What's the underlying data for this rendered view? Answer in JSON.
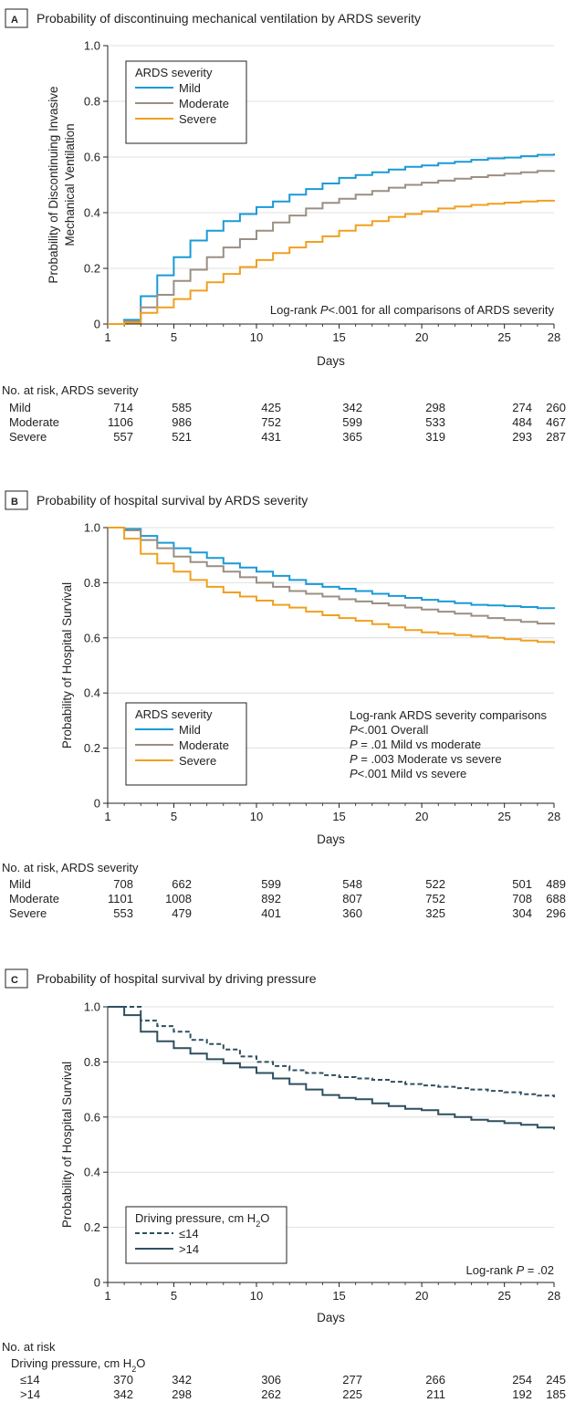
{
  "chart_data": [
    {
      "type": "line",
      "step": true,
      "panel_letter": "A",
      "title": "Probability of discontinuing mechanical ventilation by ARDS severity",
      "xlabel": "Days",
      "ylabel_lines": [
        "Probability of Discontinuing Invasive",
        "Mechanical Ventilation"
      ],
      "xlim": [
        1,
        28
      ],
      "ylim": [
        0,
        1
      ],
      "xticks": [
        1,
        5,
        10,
        15,
        20,
        25,
        28
      ],
      "yticks": [
        0,
        0.2,
        0.4,
        0.6,
        0.8,
        1.0
      ],
      "ytick_labels": [
        "0",
        "0.2",
        "0.4",
        "0.6",
        "0.8",
        "1.0"
      ],
      "grid": true,
      "legend": {
        "title": "ARDS severity",
        "position": "top-left"
      },
      "annotation": {
        "parts": [
          {
            "t": "Log-rank "
          },
          {
            "t": "P",
            "i": true
          },
          {
            "t": "<.001 for all comparisons of ARDS severity"
          }
        ]
      },
      "series": [
        {
          "name": "Mild",
          "color": "#1a9ad6",
          "dash": false,
          "x": [
            1,
            2,
            3,
            4,
            5,
            6,
            7,
            8,
            9,
            10,
            11,
            12,
            13,
            14,
            15,
            16,
            17,
            18,
            19,
            20,
            21,
            22,
            23,
            24,
            25,
            26,
            27,
            28
          ],
          "y": [
            0,
            0.015,
            0.1,
            0.175,
            0.24,
            0.3,
            0.335,
            0.37,
            0.395,
            0.42,
            0.44,
            0.465,
            0.485,
            0.505,
            0.525,
            0.535,
            0.545,
            0.555,
            0.565,
            0.57,
            0.578,
            0.583,
            0.59,
            0.595,
            0.598,
            0.603,
            0.608,
            0.612
          ]
        },
        {
          "name": "Moderate",
          "color": "#9a8f82",
          "dash": false,
          "x": [
            1,
            2,
            3,
            4,
            5,
            6,
            7,
            8,
            9,
            10,
            11,
            12,
            13,
            14,
            15,
            16,
            17,
            18,
            19,
            20,
            21,
            22,
            23,
            24,
            25,
            26,
            27,
            28
          ],
          "y": [
            0,
            0.01,
            0.06,
            0.105,
            0.155,
            0.195,
            0.24,
            0.275,
            0.305,
            0.335,
            0.365,
            0.39,
            0.415,
            0.435,
            0.45,
            0.465,
            0.478,
            0.49,
            0.5,
            0.508,
            0.515,
            0.522,
            0.528,
            0.534,
            0.54,
            0.545,
            0.55,
            0.552
          ]
        },
        {
          "name": "Severe",
          "color": "#f0a020",
          "dash": false,
          "x": [
            1,
            2,
            3,
            4,
            5,
            6,
            7,
            8,
            9,
            10,
            11,
            12,
            13,
            14,
            15,
            16,
            17,
            18,
            19,
            20,
            21,
            22,
            23,
            24,
            25,
            26,
            27,
            28
          ],
          "y": [
            0,
            0.005,
            0.04,
            0.06,
            0.09,
            0.12,
            0.15,
            0.18,
            0.205,
            0.23,
            0.255,
            0.275,
            0.295,
            0.315,
            0.335,
            0.355,
            0.37,
            0.385,
            0.395,
            0.405,
            0.415,
            0.422,
            0.428,
            0.432,
            0.436,
            0.44,
            0.443,
            0.446
          ]
        }
      ],
      "risk_table": {
        "header": "No. at risk, ARDS severity",
        "rows": [
          {
            "label": "Mild",
            "values": [
              714,
              585,
              425,
              342,
              298,
              274,
              260
            ]
          },
          {
            "label": "Moderate",
            "values": [
              1106,
              986,
              752,
              599,
              533,
              484,
              467
            ]
          },
          {
            "label": "Severe",
            "values": [
              557,
              521,
              431,
              365,
              319,
              293,
              287
            ]
          }
        ]
      }
    },
    {
      "type": "line",
      "step": true,
      "panel_letter": "B",
      "title": "Probability of hospital survival by ARDS severity",
      "xlabel": "Days",
      "ylabel_lines": [
        "Probability of Hospital Survival"
      ],
      "xlim": [
        1,
        28
      ],
      "ylim": [
        0,
        1
      ],
      "xticks": [
        1,
        5,
        10,
        15,
        20,
        25,
        28
      ],
      "yticks": [
        0,
        0.2,
        0.4,
        0.6,
        0.8,
        1.0
      ],
      "ytick_labels": [
        "0",
        "0.2",
        "0.4",
        "0.6",
        "0.8",
        "1.0"
      ],
      "grid": true,
      "legend": {
        "title": "ARDS severity",
        "position": "bottom-left"
      },
      "annotation_lines": [
        {
          "parts": [
            {
              "t": "Log-rank ARDS severity comparisons"
            }
          ]
        },
        {
          "parts": [
            {
              "t": "P",
              "i": true
            },
            {
              "t": "<.001 Overall"
            }
          ]
        },
        {
          "parts": [
            {
              "t": "P",
              "i": true
            },
            {
              "t": " = .01 Mild vs moderate"
            }
          ]
        },
        {
          "parts": [
            {
              "t": "P",
              "i": true
            },
            {
              "t": " = .003 Moderate vs severe"
            }
          ]
        },
        {
          "parts": [
            {
              "t": "P",
              "i": true
            },
            {
              "t": "<.001 Mild vs severe"
            }
          ]
        }
      ],
      "series": [
        {
          "name": "Mild",
          "color": "#1a9ad6",
          "dash": false,
          "x": [
            1,
            2,
            3,
            4,
            5,
            6,
            7,
            8,
            9,
            10,
            11,
            12,
            13,
            14,
            15,
            16,
            17,
            18,
            19,
            20,
            21,
            22,
            23,
            24,
            25,
            26,
            27,
            28
          ],
          "y": [
            1.0,
            0.995,
            0.97,
            0.945,
            0.925,
            0.91,
            0.89,
            0.87,
            0.855,
            0.84,
            0.825,
            0.81,
            0.795,
            0.785,
            0.778,
            0.77,
            0.76,
            0.752,
            0.745,
            0.738,
            0.732,
            0.726,
            0.72,
            0.718,
            0.715,
            0.712,
            0.708,
            0.705
          ]
        },
        {
          "name": "Moderate",
          "color": "#9a8f82",
          "dash": false,
          "x": [
            1,
            2,
            3,
            4,
            5,
            6,
            7,
            8,
            9,
            10,
            11,
            12,
            13,
            14,
            15,
            16,
            17,
            18,
            19,
            20,
            21,
            22,
            23,
            24,
            25,
            26,
            27,
            28
          ],
          "y": [
            1.0,
            0.99,
            0.955,
            0.925,
            0.895,
            0.875,
            0.86,
            0.84,
            0.82,
            0.8,
            0.785,
            0.77,
            0.76,
            0.75,
            0.74,
            0.732,
            0.725,
            0.718,
            0.71,
            0.703,
            0.695,
            0.688,
            0.68,
            0.672,
            0.665,
            0.658,
            0.652,
            0.648
          ]
        },
        {
          "name": "Severe",
          "color": "#f0a020",
          "dash": false,
          "x": [
            1,
            2,
            3,
            4,
            5,
            6,
            7,
            8,
            9,
            10,
            11,
            12,
            13,
            14,
            15,
            16,
            17,
            18,
            19,
            20,
            21,
            22,
            23,
            24,
            25,
            26,
            27,
            28
          ],
          "y": [
            1.0,
            0.96,
            0.905,
            0.87,
            0.84,
            0.81,
            0.785,
            0.765,
            0.75,
            0.735,
            0.72,
            0.71,
            0.695,
            0.682,
            0.672,
            0.662,
            0.65,
            0.638,
            0.628,
            0.62,
            0.615,
            0.61,
            0.605,
            0.6,
            0.595,
            0.59,
            0.585,
            0.58
          ]
        }
      ],
      "risk_table": {
        "header": "No. at risk, ARDS severity",
        "rows": [
          {
            "label": "Mild",
            "values": [
              708,
              662,
              599,
              548,
              522,
              501,
              489
            ]
          },
          {
            "label": "Moderate",
            "values": [
              1101,
              1008,
              892,
              807,
              752,
              708,
              688
            ]
          },
          {
            "label": "Severe",
            "values": [
              553,
              479,
              401,
              360,
              325,
              304,
              296
            ]
          }
        ]
      }
    },
    {
      "type": "line",
      "step": true,
      "panel_letter": "C",
      "title": "Probability of hospital survival by driving pressure",
      "xlabel": "Days",
      "ylabel_lines": [
        "Probability of Hospital Survival"
      ],
      "xlim": [
        1,
        28
      ],
      "ylim": [
        0,
        1
      ],
      "xticks": [
        1,
        5,
        10,
        15,
        20,
        25,
        28
      ],
      "yticks": [
        0,
        0.2,
        0.4,
        0.6,
        0.8,
        1.0
      ],
      "ytick_labels": [
        "0",
        "0.2",
        "0.4",
        "0.6",
        "0.8",
        "1.0"
      ],
      "grid": true,
      "legend": {
        "title_parts": [
          {
            "t": "Driving pressure, cm H"
          },
          {
            "t": "2",
            "sub": true
          },
          {
            "t": "O"
          }
        ],
        "position": "bottom-left"
      },
      "annotation": {
        "parts": [
          {
            "t": "Log-rank "
          },
          {
            "t": "P",
            "i": true
          },
          {
            "t": " = .02"
          }
        ]
      },
      "series": [
        {
          "name": "≤14",
          "color": "#2f4f5f",
          "dash": true,
          "x": [
            1,
            2,
            3,
            4,
            5,
            6,
            7,
            8,
            9,
            10,
            11,
            12,
            13,
            14,
            15,
            16,
            17,
            18,
            19,
            20,
            21,
            22,
            23,
            24,
            25,
            26,
            27,
            28
          ],
          "y": [
            1.0,
            1.0,
            0.95,
            0.93,
            0.91,
            0.88,
            0.865,
            0.845,
            0.82,
            0.8,
            0.785,
            0.77,
            0.76,
            0.752,
            0.745,
            0.74,
            0.735,
            0.728,
            0.72,
            0.715,
            0.71,
            0.705,
            0.7,
            0.695,
            0.69,
            0.683,
            0.678,
            0.672
          ]
        },
        {
          "name": ">14",
          "color": "#2f4f5f",
          "dash": false,
          "x": [
            1,
            2,
            3,
            4,
            5,
            6,
            7,
            8,
            9,
            10,
            11,
            12,
            13,
            14,
            15,
            16,
            17,
            18,
            19,
            20,
            21,
            22,
            23,
            24,
            25,
            26,
            27,
            28
          ],
          "y": [
            1.0,
            0.97,
            0.91,
            0.875,
            0.85,
            0.83,
            0.81,
            0.795,
            0.78,
            0.76,
            0.74,
            0.72,
            0.7,
            0.68,
            0.67,
            0.665,
            0.65,
            0.64,
            0.63,
            0.625,
            0.61,
            0.6,
            0.59,
            0.585,
            0.578,
            0.572,
            0.562,
            0.555
          ]
        }
      ],
      "risk_table": {
        "header": "No. at risk",
        "subheader_parts": [
          {
            "t": "Driving pressure, cm H"
          },
          {
            "t": "2",
            "sub": true
          },
          {
            "t": "O"
          }
        ],
        "rows": [
          {
            "label": "≤14",
            "values": [
              370,
              342,
              306,
              277,
              266,
              254,
              245
            ]
          },
          {
            "label": ">14",
            "values": [
              342,
              298,
              262,
              225,
              211,
              192,
              185
            ]
          }
        ]
      }
    }
  ]
}
